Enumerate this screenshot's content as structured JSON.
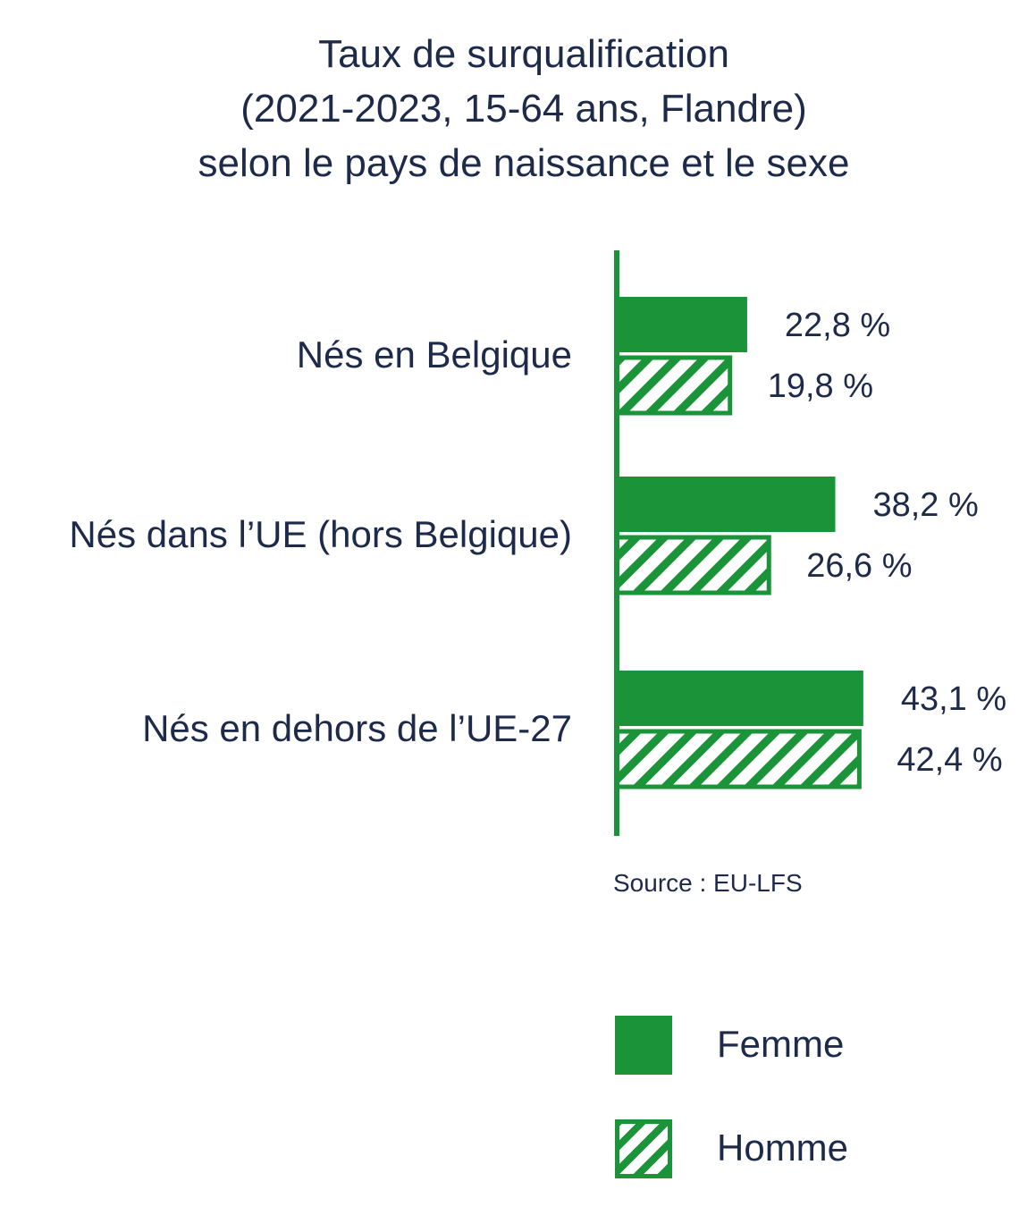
{
  "title": {
    "line1": "Taux de surqualification",
    "line2": "(2021-2023, 15-64 ans, Flandre)",
    "line3": "selon le pays de naissance et le sexe"
  },
  "source": "Source : EU-LFS",
  "colors": {
    "green": "#1a9339",
    "white": "#ffffff",
    "text": "#1d2a4a"
  },
  "chart_data": {
    "type": "bar",
    "orientation": "horizontal",
    "categories": [
      "Nés en Belgique",
      "Nés dans l’UE (hors Belgique)",
      "Nés en dehors de l’UE-27"
    ],
    "series": [
      {
        "name": "Femme",
        "values": [
          22.8,
          38.2,
          43.1
        ],
        "labels": [
          "22,8 %",
          "38,2 %",
          "43,1 %"
        ],
        "style": "solid"
      },
      {
        "name": "Homme",
        "values": [
          19.8,
          26.6,
          42.4
        ],
        "labels": [
          "19,8 %",
          "26,6 %",
          "42,4 %"
        ],
        "style": "hatched"
      }
    ],
    "xlim": [
      0,
      43.1
    ],
    "grid": false,
    "legend_position": "bottom-right"
  }
}
